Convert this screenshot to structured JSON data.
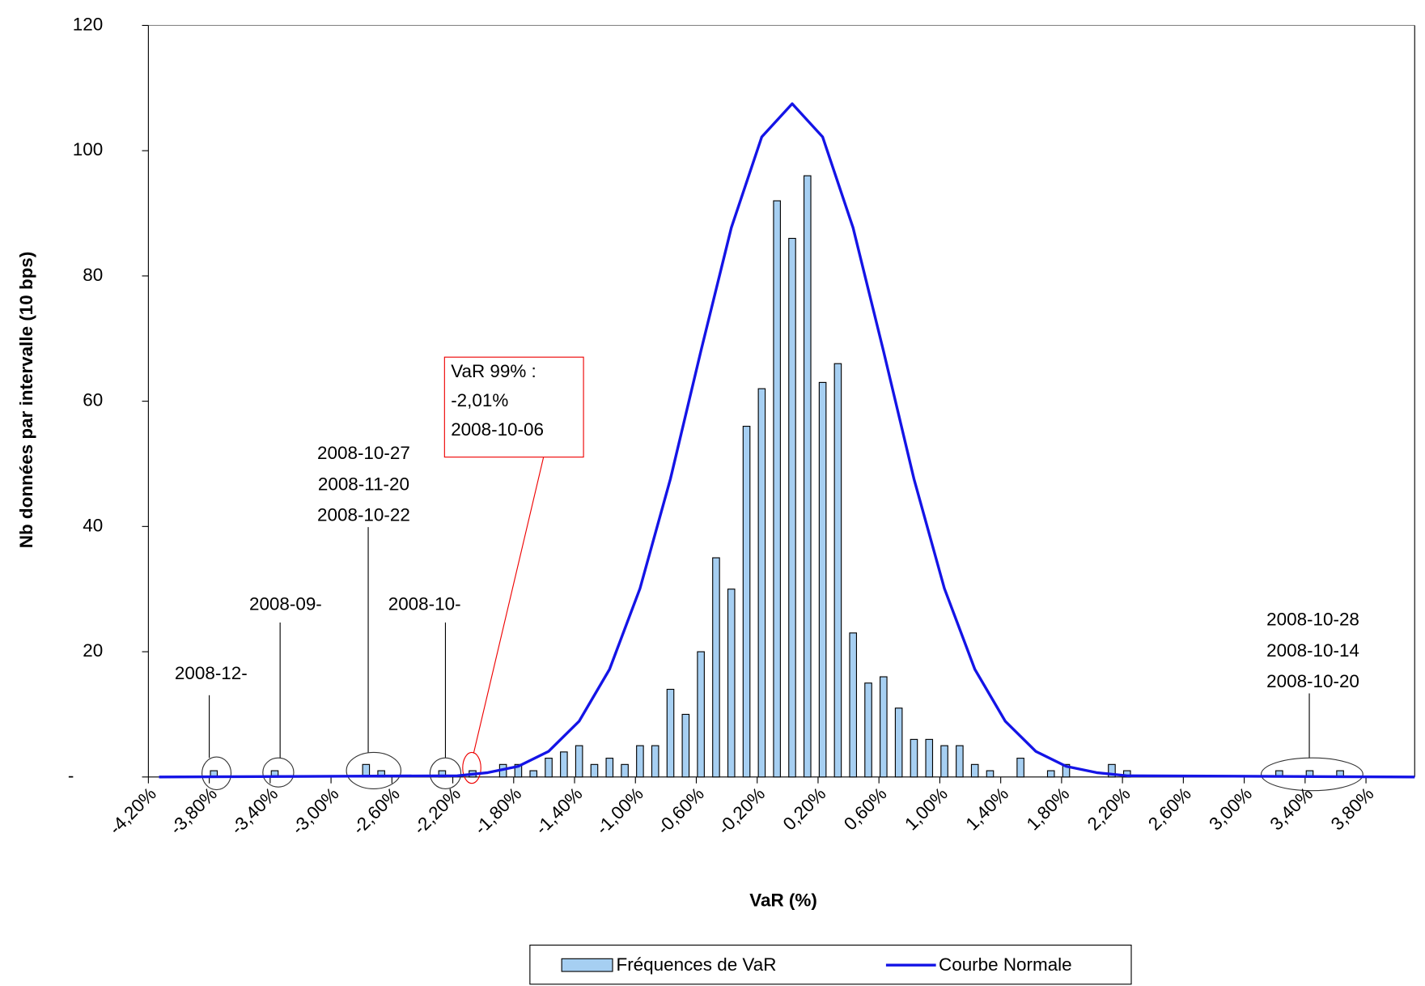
{
  "chart_data": {
    "type": "bar",
    "x_label": "VaR (%)",
    "y_label": "Nb données par intervalle  (10 bps)",
    "xlim": [
      -4.2,
      4.12
    ],
    "ylim": [
      0,
      120
    ],
    "xticks": [
      {
        "value": -4.2,
        "label": "-4,20%"
      },
      {
        "value": -3.8,
        "label": "-3,80%"
      },
      {
        "value": -3.4,
        "label": "-3,40%"
      },
      {
        "value": -3.0,
        "label": "-3,00%"
      },
      {
        "value": -2.6,
        "label": "-2,60%"
      },
      {
        "value": -2.2,
        "label": "-2,20%"
      },
      {
        "value": -1.8,
        "label": "-1,80%"
      },
      {
        "value": -1.4,
        "label": "-1,40%"
      },
      {
        "value": -1.0,
        "label": "-1,00%"
      },
      {
        "value": -0.6,
        "label": "-0,60%"
      },
      {
        "value": -0.2,
        "label": "-0,20%"
      },
      {
        "value": 0.2,
        "label": "0,20%"
      },
      {
        "value": 0.6,
        "label": "0,60%"
      },
      {
        "value": 1.0,
        "label": "1,00%"
      },
      {
        "value": 1.4,
        "label": "1,40%"
      },
      {
        "value": 1.8,
        "label": "1,80%"
      },
      {
        "value": 2.2,
        "label": "2,20%"
      },
      {
        "value": 2.6,
        "label": "2,60%"
      },
      {
        "value": 3.0,
        "label": "3,00%"
      },
      {
        "value": 3.4,
        "label": "3,40%"
      },
      {
        "value": 3.8,
        "label": "3,80%"
      }
    ],
    "yticks": [
      {
        "value": 0,
        "label": "-"
      },
      20,
      40,
      60,
      80,
      100,
      120
    ],
    "series": [
      {
        "name": "Fréquences de VaR",
        "type": "bar",
        "color": "#a6cff2",
        "x": [
          -3.77,
          -3.37,
          -2.77,
          -2.67,
          -2.27,
          -2.07,
          -1.87,
          -1.77,
          -1.67,
          -1.57,
          -1.47,
          -1.37,
          -1.27,
          -1.17,
          -1.07,
          -0.97,
          -0.87,
          -0.77,
          -0.67,
          -0.57,
          -0.47,
          -0.37,
          -0.27,
          -0.17,
          -0.07,
          0.03,
          0.13,
          0.23,
          0.33,
          0.43,
          0.53,
          0.63,
          0.73,
          0.83,
          0.93,
          1.03,
          1.13,
          1.23,
          1.33,
          1.53,
          1.73,
          1.83,
          2.13,
          2.23,
          3.23,
          3.43,
          3.63
        ],
        "values": [
          1,
          1,
          2,
          1,
          1,
          1,
          2,
          2,
          1,
          3,
          4,
          5,
          2,
          3,
          2,
          5,
          5,
          14,
          10,
          20,
          35,
          30,
          56,
          62,
          92,
          86,
          96,
          63,
          66,
          23,
          15,
          16,
          11,
          6,
          6,
          5,
          5,
          2,
          1,
          3,
          1,
          2,
          2,
          1,
          1,
          1,
          1
        ]
      },
      {
        "name": "Courbe Normale",
        "type": "line",
        "color": "#1414e6",
        "x": [
          -4.13,
          -2.17,
          -1.97,
          -1.77,
          -1.57,
          -1.37,
          -1.17,
          -0.97,
          -0.77,
          -0.57,
          -0.37,
          -0.17,
          0.03,
          0.23,
          0.43,
          0.63,
          0.83,
          1.03,
          1.23,
          1.43,
          1.63,
          1.83,
          2.03,
          2.23,
          4.12
        ],
        "values": [
          0,
          0.2,
          0.7,
          1.7,
          4.1,
          8.9,
          17.2,
          30.1,
          47.6,
          68.0,
          87.7,
          102.2,
          107.5,
          102.2,
          87.7,
          68.0,
          47.6,
          30.1,
          17.2,
          8.9,
          4.1,
          1.7,
          0.7,
          0.2,
          0
        ]
      }
    ],
    "annotations": [
      {
        "lines": [
          "2008-12-"
        ]
      },
      {
        "lines": [
          "2008-09-"
        ]
      },
      {
        "lines": [
          "2008-10-27",
          "2008-11-20",
          "2008-10-22"
        ]
      },
      {
        "lines": [
          "2008-10-"
        ]
      },
      {
        "lines": [
          "VaR 99% :",
          "-2,01%",
          "2008-10-06"
        ]
      },
      {
        "lines": [
          "2008-10-28",
          "2008-10-14",
          "2008-10-20"
        ]
      }
    ]
  }
}
